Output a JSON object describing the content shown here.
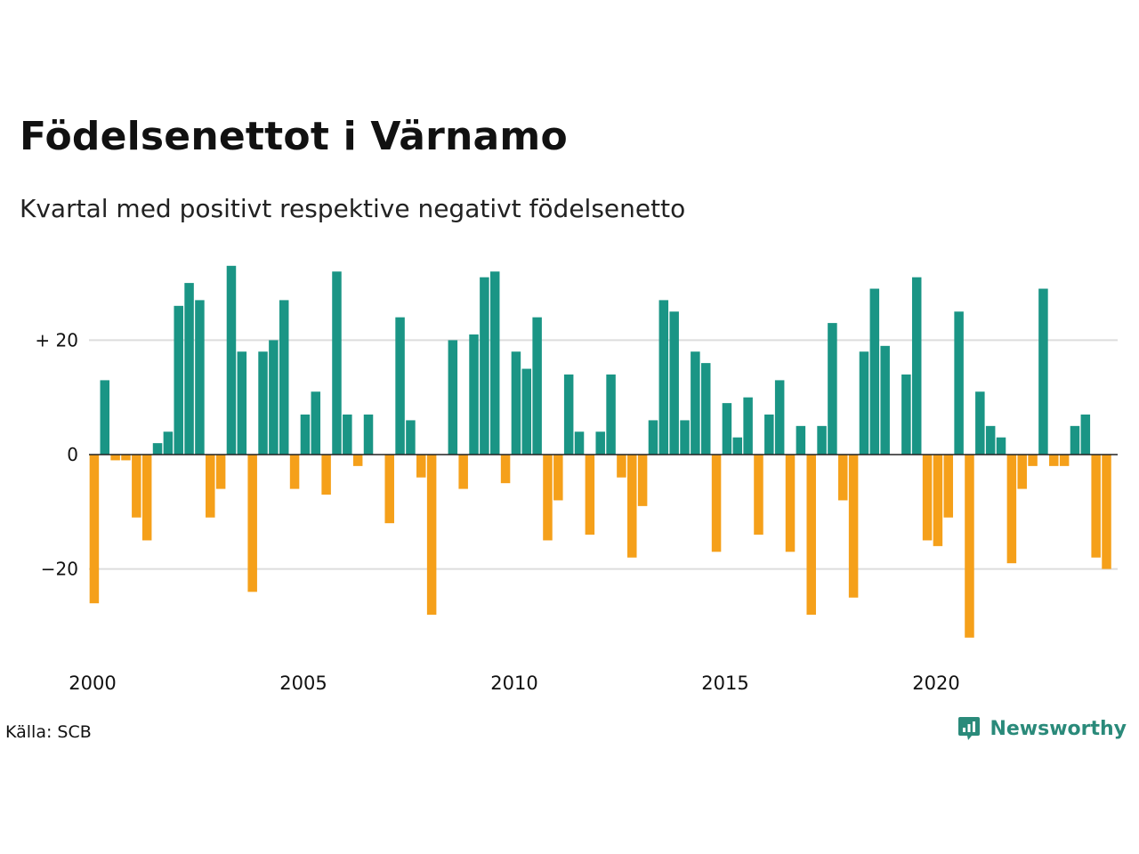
{
  "title": "Födelsenettot i Värnamo",
  "subtitle": "Kvartal med positivt respektive negativt födelsenetto",
  "source": "Källa: SCB",
  "logo_text": "Newsworthy",
  "colors": {
    "positive": "#1a9585",
    "negative": "#f5a01a",
    "grid": "#dddddd",
    "zero": "#222222",
    "logo": "#2a8a7a"
  },
  "chart_data": {
    "type": "bar",
    "x_start": 2000.0,
    "x_step": 0.25,
    "values": [
      -26,
      13,
      -1,
      -1,
      -11,
      -15,
      2,
      4,
      26,
      30,
      27,
      -11,
      -6,
      33,
      18,
      -24,
      18,
      20,
      27,
      -6,
      7,
      11,
      -7,
      32,
      7,
      -2,
      7,
      0,
      -12,
      24,
      6,
      -4,
      -28,
      0,
      20,
      -6,
      21,
      31,
      32,
      -5,
      18,
      15,
      24,
      -15,
      -8,
      14,
      4,
      -14,
      4,
      14,
      -4,
      -18,
      -9,
      6,
      27,
      25,
      6,
      18,
      16,
      -17,
      9,
      3,
      10,
      -14,
      7,
      13,
      -17,
      5,
      -28,
      5,
      23,
      -8,
      -25,
      18,
      29,
      19,
      0,
      14,
      31,
      -15,
      -16,
      -11,
      25,
      -32,
      11,
      5,
      3,
      -19,
      -6,
      -2,
      29,
      -2,
      -2,
      5,
      7,
      -18,
      -20
    ],
    "ylim": [
      -35,
      35
    ],
    "y_ticks": [
      {
        "value": 20,
        "label": "+ 20"
      },
      {
        "value": 0,
        "label": "0"
      },
      {
        "value": -20,
        "label": "−20"
      }
    ],
    "x_ticks": [
      {
        "value": 2000,
        "label": "2000"
      },
      {
        "value": 2005,
        "label": "2005"
      },
      {
        "value": 2010,
        "label": "2010"
      },
      {
        "value": 2015,
        "label": "2015"
      },
      {
        "value": 2020,
        "label": "2020"
      }
    ],
    "xlabel": "",
    "ylabel": ""
  }
}
